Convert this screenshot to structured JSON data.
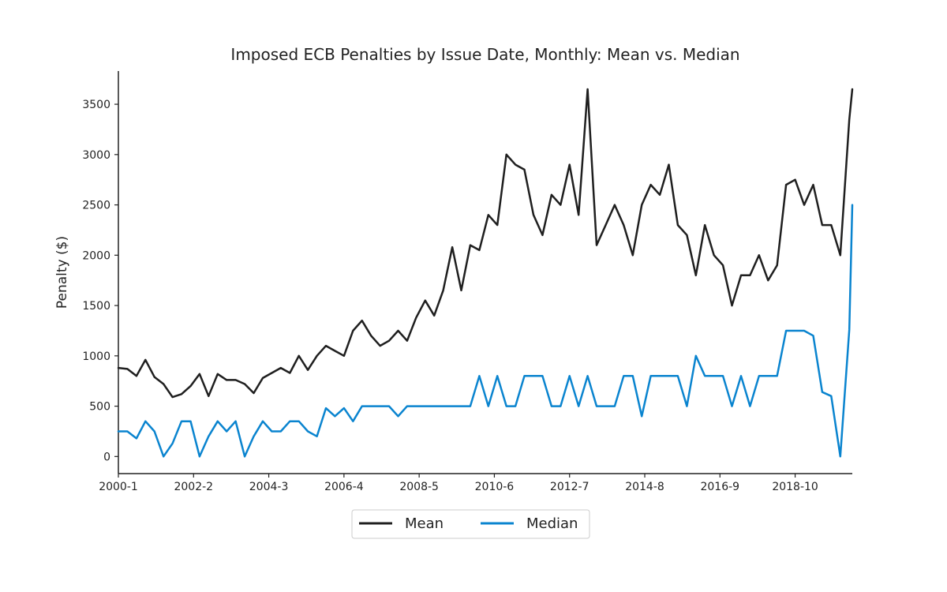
{
  "chart_data": {
    "type": "line",
    "title": "Imposed ECB Penalties by Issue Date, Monthly: Mean vs. Median",
    "xlabel": "",
    "ylabel": "Penalty ($)",
    "xlim": [
      "2000-1",
      "2020-5"
    ],
    "ylim": [
      -170,
      3830
    ],
    "yticks": [
      0,
      500,
      1000,
      1500,
      2000,
      2500,
      3000,
      3500
    ],
    "xticks": [
      "2000-1",
      "2002-2",
      "2004-3",
      "2006-4",
      "2008-5",
      "2010-6",
      "2012-7",
      "2014-8",
      "2016-9",
      "2018-10"
    ],
    "grid": false,
    "legend_position": "bottom-center",
    "series": [
      {
        "name": "Mean",
        "color": "#1f1f1f",
        "x": [
          "2000-1",
          "2000-4",
          "2000-7",
          "2000-10",
          "2001-1",
          "2001-4",
          "2001-7",
          "2001-10",
          "2002-1",
          "2002-4",
          "2002-7",
          "2002-10",
          "2003-1",
          "2003-4",
          "2003-7",
          "2003-10",
          "2004-1",
          "2004-4",
          "2004-7",
          "2004-10",
          "2005-1",
          "2005-4",
          "2005-7",
          "2005-10",
          "2006-1",
          "2006-4",
          "2006-7",
          "2006-10",
          "2007-1",
          "2007-4",
          "2007-7",
          "2007-10",
          "2008-1",
          "2008-4",
          "2008-7",
          "2008-10",
          "2009-1",
          "2009-4",
          "2009-7",
          "2009-10",
          "2010-1",
          "2010-4",
          "2010-7",
          "2010-10",
          "2011-1",
          "2011-4",
          "2011-7",
          "2011-10",
          "2012-1",
          "2012-4",
          "2012-7",
          "2012-10",
          "2013-1",
          "2013-4",
          "2013-7",
          "2013-10",
          "2014-1",
          "2014-4",
          "2014-7",
          "2014-10",
          "2015-1",
          "2015-4",
          "2015-7",
          "2015-10",
          "2016-1",
          "2016-4",
          "2016-7",
          "2016-10",
          "2017-1",
          "2017-4",
          "2017-7",
          "2017-10",
          "2018-1",
          "2018-4",
          "2018-7",
          "2018-10",
          "2019-1",
          "2019-4",
          "2019-7",
          "2019-10",
          "2020-1",
          "2020-4",
          "2020-5"
        ],
        "values": [
          880,
          870,
          800,
          960,
          790,
          720,
          590,
          620,
          700,
          820,
          600,
          820,
          760,
          760,
          720,
          630,
          780,
          830,
          880,
          830,
          1000,
          860,
          1000,
          1100,
          1050,
          1000,
          1250,
          1350,
          1200,
          1100,
          1150,
          1250,
          1150,
          1380,
          1550,
          1400,
          1650,
          2080,
          1650,
          2100,
          2050,
          2400,
          2300,
          3000,
          2900,
          2850,
          2400,
          2200,
          2600,
          2500,
          2900,
          2400,
          3650,
          2100,
          2300,
          2500,
          2300,
          2000,
          2500,
          2700,
          2600,
          2900,
          2300,
          2200,
          1800,
          2300,
          2000,
          1900,
          1500,
          1800,
          1800,
          2000,
          1750,
          1900,
          2700,
          2750,
          2500,
          2700,
          2300,
          2300,
          2000,
          3350,
          3650
        ]
      },
      {
        "name": "Median",
        "color": "#0a84cf",
        "x": [
          "2000-1",
          "2000-4",
          "2000-7",
          "2000-10",
          "2001-1",
          "2001-4",
          "2001-7",
          "2001-10",
          "2002-1",
          "2002-4",
          "2002-7",
          "2002-10",
          "2003-1",
          "2003-4",
          "2003-7",
          "2003-10",
          "2004-1",
          "2004-4",
          "2004-7",
          "2004-10",
          "2005-1",
          "2005-4",
          "2005-7",
          "2005-10",
          "2006-1",
          "2006-4",
          "2006-7",
          "2006-10",
          "2007-1",
          "2007-4",
          "2007-7",
          "2007-10",
          "2008-1",
          "2008-4",
          "2008-7",
          "2008-10",
          "2009-1",
          "2009-4",
          "2009-7",
          "2009-10",
          "2010-1",
          "2010-4",
          "2010-7",
          "2010-10",
          "2011-1",
          "2011-4",
          "2011-7",
          "2011-10",
          "2012-1",
          "2012-4",
          "2012-7",
          "2012-10",
          "2013-1",
          "2013-4",
          "2013-7",
          "2013-10",
          "2014-1",
          "2014-4",
          "2014-7",
          "2014-10",
          "2015-1",
          "2015-4",
          "2015-7",
          "2015-10",
          "2016-1",
          "2016-4",
          "2016-7",
          "2016-10",
          "2017-1",
          "2017-4",
          "2017-7",
          "2017-10",
          "2018-1",
          "2018-4",
          "2018-7",
          "2018-10",
          "2019-1",
          "2019-4",
          "2019-7",
          "2019-10",
          "2020-1",
          "2020-4",
          "2020-5"
        ],
        "values": [
          250,
          250,
          180,
          350,
          250,
          0,
          130,
          350,
          350,
          0,
          200,
          350,
          250,
          350,
          0,
          200,
          350,
          250,
          250,
          350,
          350,
          250,
          200,
          480,
          400,
          480,
          350,
          500,
          500,
          500,
          500,
          400,
          500,
          500,
          500,
          500,
          500,
          500,
          500,
          500,
          800,
          500,
          800,
          500,
          500,
          800,
          800,
          800,
          500,
          500,
          800,
          500,
          800,
          500,
          500,
          500,
          800,
          800,
          400,
          800,
          800,
          800,
          800,
          500,
          1000,
          800,
          800,
          800,
          500,
          800,
          500,
          800,
          800,
          800,
          1250,
          1250,
          1250,
          1200,
          640,
          600,
          0,
          1260,
          2500
        ]
      }
    ]
  }
}
